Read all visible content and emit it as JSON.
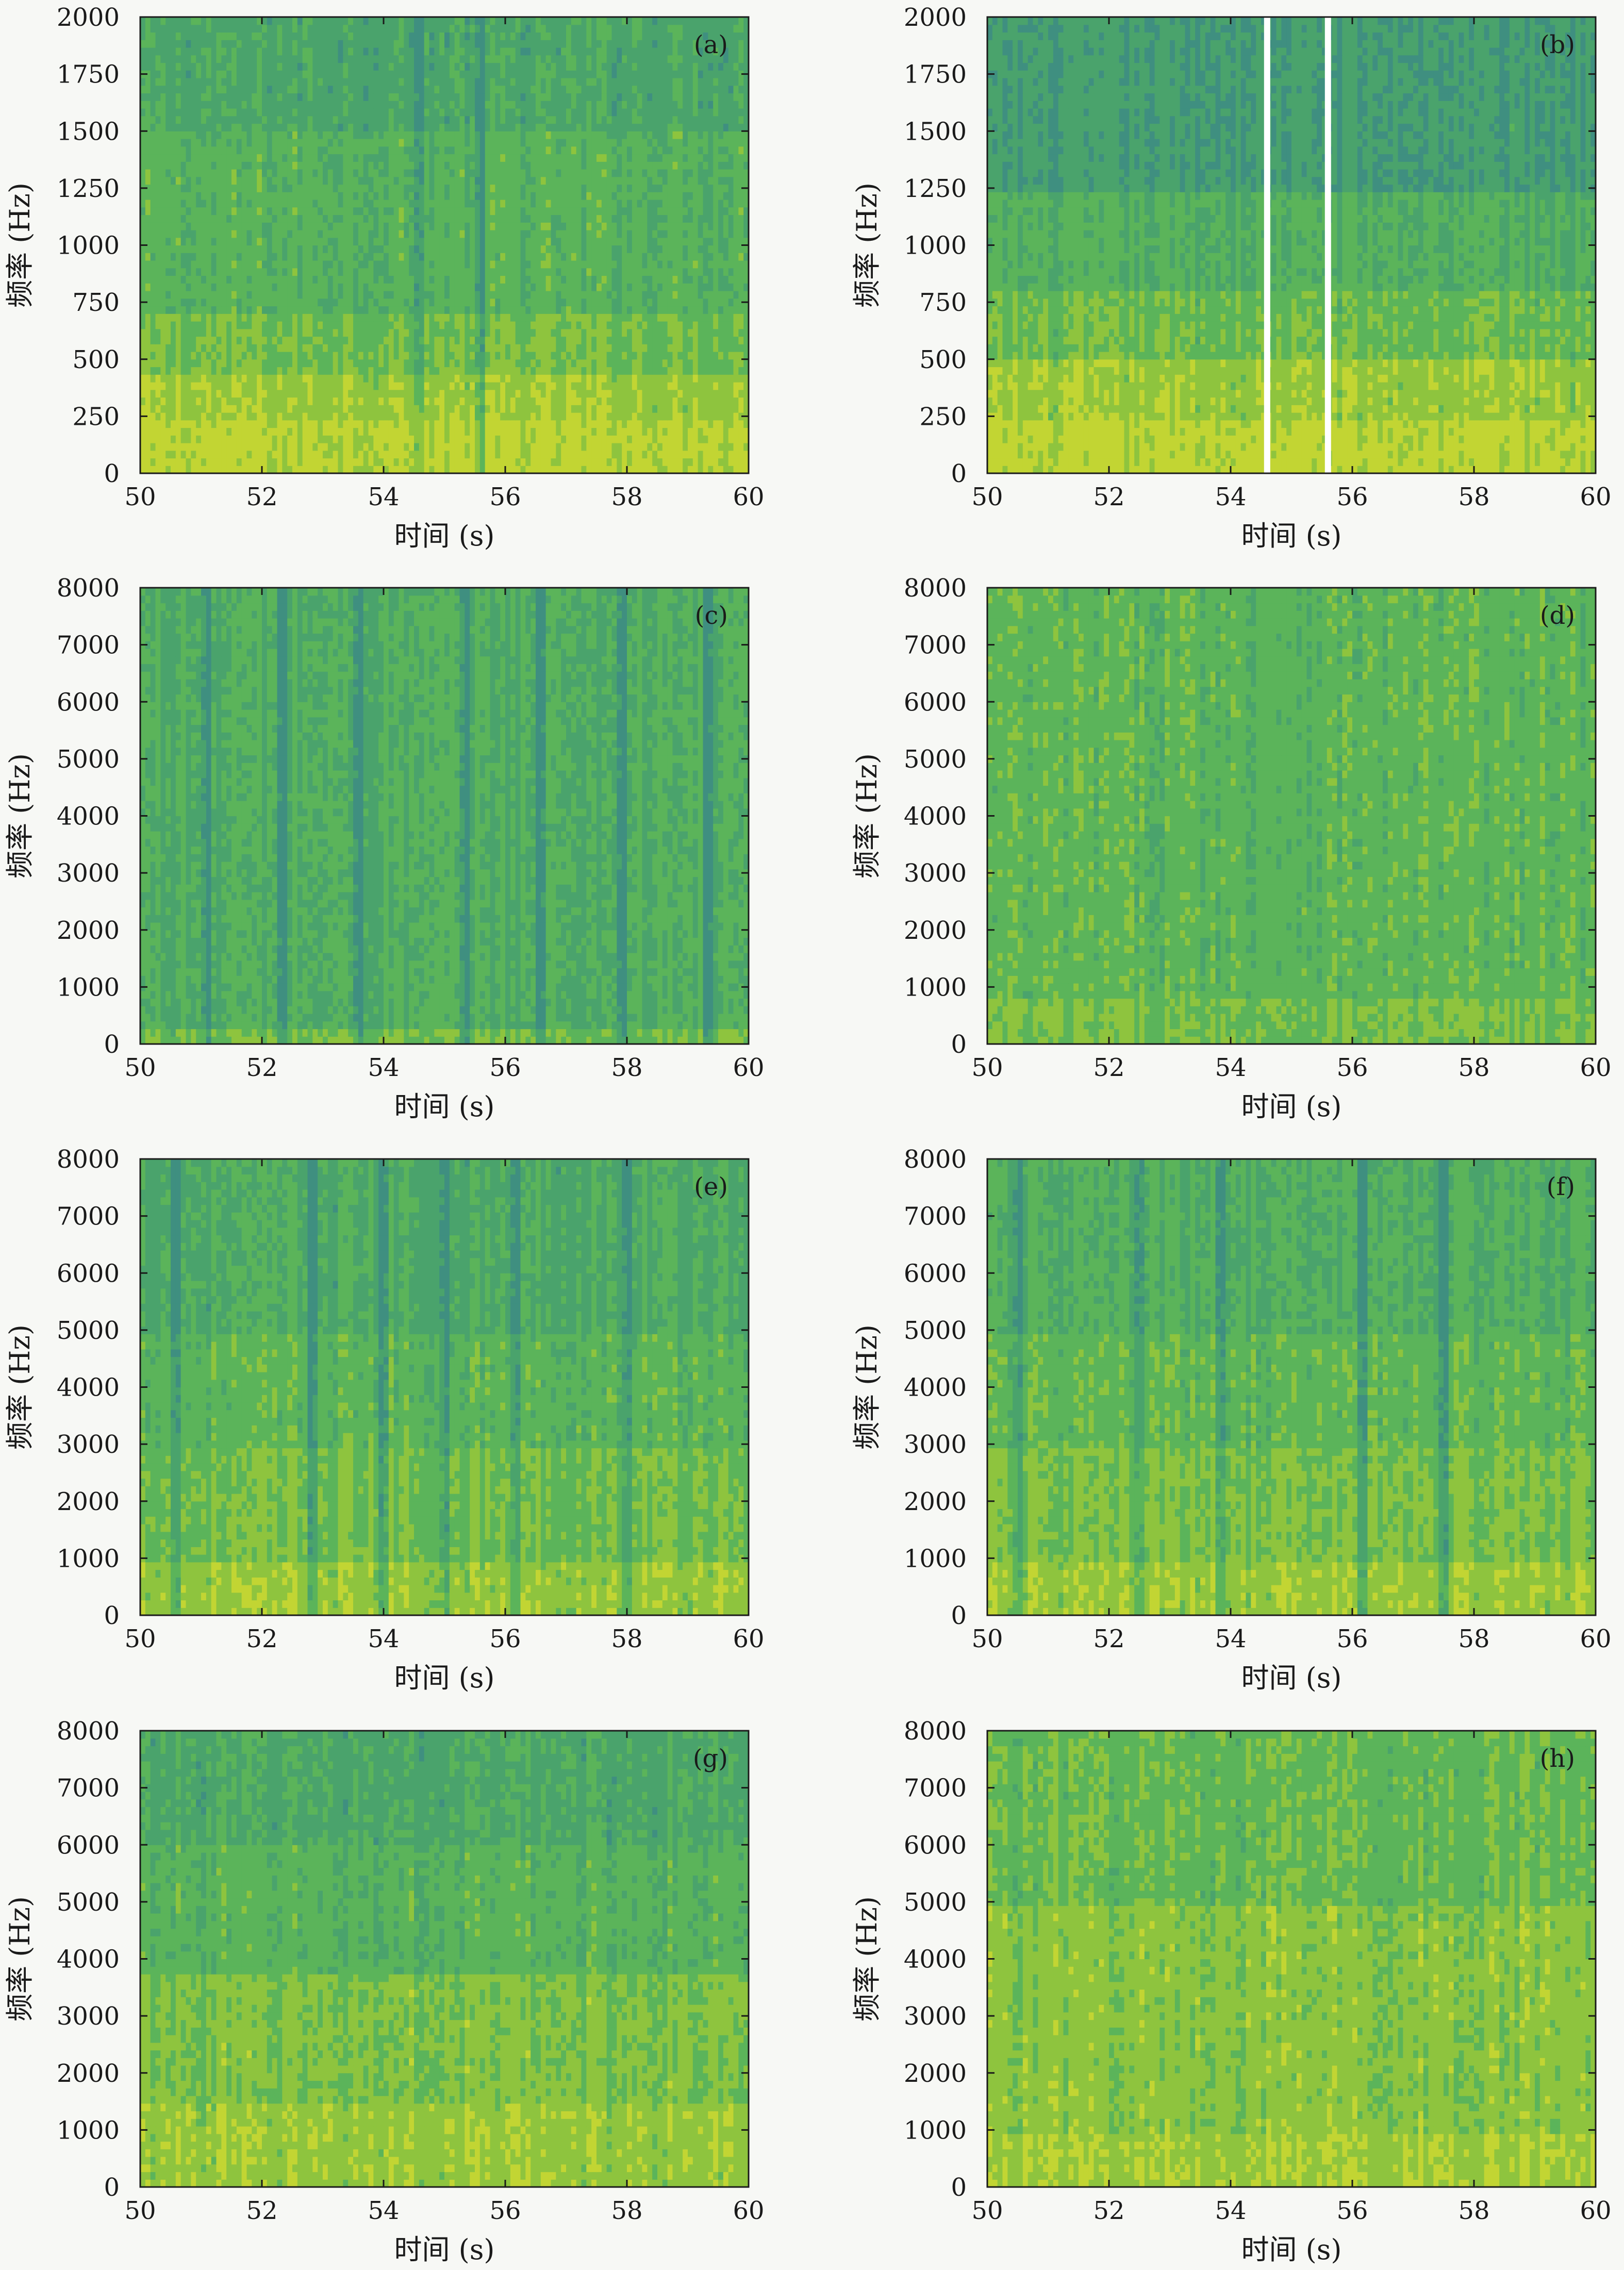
{
  "figure": {
    "colors": {
      "deep": "#3f8f80",
      "mid": "#4aa36c",
      "green": "#5bb45a",
      "yellowgreen": "#8ec43e",
      "yellow": "#c2d533",
      "gap": "#ffffff",
      "frame": "#1a1a1a"
    }
  },
  "chart_data": [
    {
      "id": "a",
      "type": "heatmap",
      "panel_label": "(a)",
      "xlabel": "时间 (s)",
      "ylabel": "频率 (Hz)",
      "xlim": [
        50,
        60
      ],
      "ylim": [
        0,
        2000
      ],
      "xticks": [
        "50",
        "52",
        "54",
        "56",
        "58",
        "60"
      ],
      "yticks": [
        "0",
        "250",
        "500",
        "750",
        "1000",
        "1250",
        "1500",
        "1750",
        "2000"
      ],
      "bands": [
        {
          "from": 0,
          "to": 250,
          "level": 0.95
        },
        {
          "from": 250,
          "to": 450,
          "level": 0.82
        },
        {
          "from": 450,
          "to": 700,
          "level": 0.62
        },
        {
          "from": 700,
          "to": 1500,
          "level": 0.45
        },
        {
          "from": 1500,
          "to": 2000,
          "level": 0.3
        }
      ],
      "dark_times": [
        54.6,
        55.6
      ],
      "gaps": []
    },
    {
      "id": "b",
      "type": "heatmap",
      "panel_label": "(b)",
      "xlabel": "时间 (s)",
      "ylabel": "频率 (Hz)",
      "xlim": [
        50,
        60
      ],
      "ylim": [
        0,
        2000
      ],
      "xticks": [
        "50",
        "52",
        "54",
        "56",
        "58",
        "60"
      ],
      "yticks": [
        "0",
        "250",
        "500",
        "750",
        "1000",
        "1250",
        "1500",
        "1750",
        "2000"
      ],
      "bands": [
        {
          "from": 0,
          "to": 250,
          "level": 0.95
        },
        {
          "from": 250,
          "to": 500,
          "level": 0.8
        },
        {
          "from": 500,
          "to": 800,
          "level": 0.58
        },
        {
          "from": 800,
          "to": 1250,
          "level": 0.4
        },
        {
          "from": 1250,
          "to": 2000,
          "level": 0.15
        }
      ],
      "dark_times": [],
      "gaps": [
        54.6,
        55.6
      ]
    },
    {
      "id": "c",
      "type": "heatmap",
      "panel_label": "(c)",
      "xlabel": "时间 (s)",
      "ylabel": "频率 (Hz)",
      "xlim": [
        50,
        60
      ],
      "ylim": [
        0,
        8000
      ],
      "xticks": [
        "50",
        "52",
        "54",
        "56",
        "58",
        "60"
      ],
      "yticks": [
        "0",
        "1000",
        "2000",
        "3000",
        "4000",
        "5000",
        "6000",
        "7000",
        "8000"
      ],
      "bands": [
        {
          "from": 0,
          "to": 300,
          "level": 0.6
        },
        {
          "from": 300,
          "to": 8000,
          "level": 0.38
        }
      ],
      "dark_times": [
        51.1,
        52.3,
        53.6,
        55.3,
        56.6,
        57.9,
        59.3
      ],
      "gaps": []
    },
    {
      "id": "d",
      "type": "heatmap",
      "panel_label": "(d)",
      "xlabel": "时间 (s)",
      "ylabel": "频率 (Hz)",
      "xlim": [
        50,
        60
      ],
      "ylim": [
        0,
        8000
      ],
      "xticks": [
        "50",
        "52",
        "54",
        "56",
        "58",
        "60"
      ],
      "yticks": [
        "0",
        "1000",
        "2000",
        "3000",
        "4000",
        "5000",
        "6000",
        "7000",
        "8000"
      ],
      "bands": [
        {
          "from": 0,
          "to": 800,
          "level": 0.62
        },
        {
          "from": 800,
          "to": 8000,
          "level": 0.5
        }
      ],
      "dark_times": [],
      "gaps": []
    },
    {
      "id": "e",
      "type": "heatmap",
      "panel_label": "(e)",
      "xlabel": "时间 (s)",
      "ylabel": "频率 (Hz)",
      "xlim": [
        50,
        60
      ],
      "ylim": [
        0,
        8000
      ],
      "xticks": [
        "50",
        "52",
        "54",
        "56",
        "58",
        "60"
      ],
      "yticks": [
        "0",
        "1000",
        "2000",
        "3000",
        "4000",
        "5000",
        "6000",
        "7000",
        "8000"
      ],
      "bands": [
        {
          "from": 0,
          "to": 1000,
          "level": 0.8
        },
        {
          "from": 1000,
          "to": 3000,
          "level": 0.62
        },
        {
          "from": 3000,
          "to": 5000,
          "level": 0.5
        },
        {
          "from": 5000,
          "to": 8000,
          "level": 0.35
        }
      ],
      "dark_times": [
        50.6,
        52.8,
        54.0,
        55.0,
        56.2,
        58.0
      ],
      "gaps": []
    },
    {
      "id": "f",
      "type": "heatmap",
      "panel_label": "(f)",
      "xlabel": "时间 (s)",
      "ylabel": "频率 (Hz)",
      "xlim": [
        50,
        60
      ],
      "ylim": [
        0,
        8000
      ],
      "xticks": [
        "50",
        "52",
        "54",
        "56",
        "58",
        "60"
      ],
      "yticks": [
        "0",
        "1000",
        "2000",
        "3000",
        "4000",
        "5000",
        "6000",
        "7000",
        "8000"
      ],
      "bands": [
        {
          "from": 0,
          "to": 1000,
          "level": 0.8
        },
        {
          "from": 1000,
          "to": 3000,
          "level": 0.64
        },
        {
          "from": 3000,
          "to": 5000,
          "level": 0.52
        },
        {
          "from": 5000,
          "to": 8000,
          "level": 0.38
        }
      ],
      "dark_times": [
        50.5,
        52.5,
        53.8,
        56.2,
        57.5
      ],
      "gaps": []
    },
    {
      "id": "g",
      "type": "heatmap",
      "panel_label": "(g)",
      "xlabel": "时间 (s)",
      "ylabel": "频率 (Hz)",
      "xlim": [
        50,
        60
      ],
      "ylim": [
        0,
        8000
      ],
      "xticks": [
        "50",
        "52",
        "54",
        "56",
        "58",
        "60"
      ],
      "yticks": [
        "0",
        "1000",
        "2000",
        "3000",
        "4000",
        "5000",
        "6000",
        "7000",
        "8000"
      ],
      "bands": [
        {
          "from": 0,
          "to": 1500,
          "level": 0.8
        },
        {
          "from": 1500,
          "to": 3800,
          "level": 0.66
        },
        {
          "from": 3800,
          "to": 6000,
          "level": 0.45
        },
        {
          "from": 6000,
          "to": 8000,
          "level": 0.32
        }
      ],
      "dark_times": [],
      "gaps": []
    },
    {
      "id": "h",
      "type": "heatmap",
      "panel_label": "(h)",
      "xlabel": "时间 (s)",
      "ylabel": "频率 (Hz)",
      "xlim": [
        50,
        60
      ],
      "ylim": [
        0,
        8000
      ],
      "xticks": [
        "50",
        "52",
        "54",
        "56",
        "58",
        "60"
      ],
      "yticks": [
        "0",
        "1000",
        "2000",
        "3000",
        "4000",
        "5000",
        "6000",
        "7000",
        "8000"
      ],
      "bands": [
        {
          "from": 0,
          "to": 1000,
          "level": 0.85
        },
        {
          "from": 1000,
          "to": 5000,
          "level": 0.72
        },
        {
          "from": 5000,
          "to": 8000,
          "level": 0.56
        }
      ],
      "dark_times": [],
      "gaps": []
    }
  ]
}
